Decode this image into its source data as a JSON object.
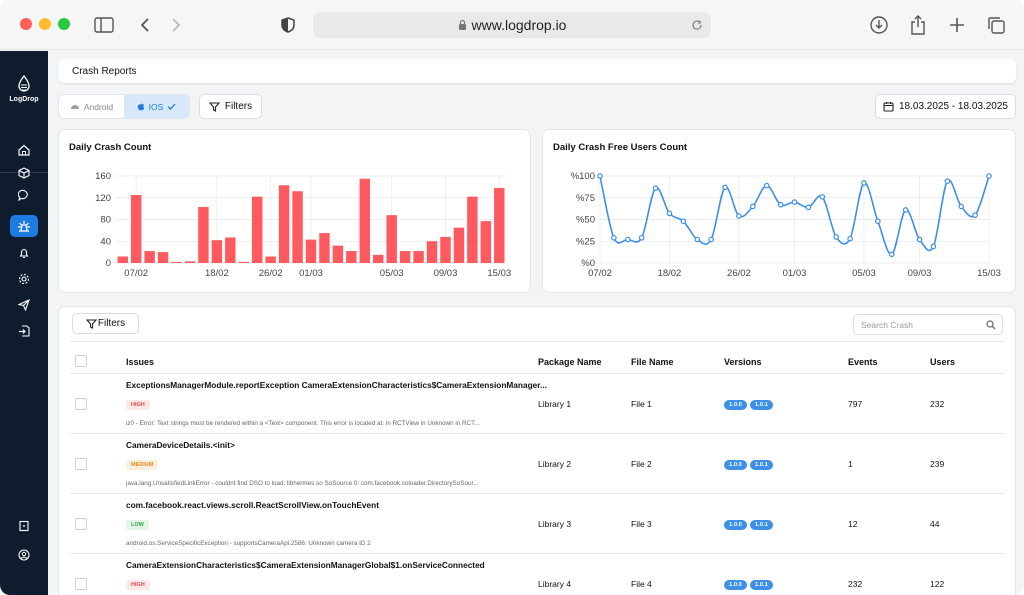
{
  "browser": {
    "url": "www.logdrop.io"
  },
  "app": {
    "logo_text": "LogDrop"
  },
  "breadcrumb": "Crash Reports",
  "platform": {
    "android": "Android",
    "ios": "IOS"
  },
  "filters_label": "Filters",
  "date_range": "18.03.2025 - 18.03.2025",
  "charts": {
    "crash_title": "Daily Crash Count",
    "free_title": "Daily Crash Free Users Count"
  },
  "chart_data": [
    {
      "type": "bar",
      "title": "Daily Crash Count",
      "ylim": [
        0,
        160
      ],
      "y_ticks": [
        "0",
        "40",
        "80",
        "120",
        "160"
      ],
      "x_ticks": [
        "07/02",
        "18/02",
        "26/02",
        "01/03",
        "05/03",
        "09/03",
        "15/03"
      ],
      "values": [
        12,
        125,
        22,
        20,
        2,
        3,
        103,
        42,
        47,
        2,
        122,
        12,
        143,
        132,
        43,
        55,
        32,
        22,
        155,
        15,
        88,
        22,
        22,
        40,
        48,
        65,
        122,
        77,
        138
      ],
      "color": "#ff5a5f"
    },
    {
      "type": "line",
      "title": "Daily Crash Free Users Count",
      "ylim": [
        0,
        100
      ],
      "y_ticks": [
        "%0",
        "%25",
        "%50",
        "%75",
        "%100"
      ],
      "x_ticks": [
        "07/02",
        "18/02",
        "26/02",
        "01/03",
        "05/03",
        "09/03",
        "15/03"
      ],
      "values": [
        100,
        29,
        27,
        29,
        86,
        57,
        48,
        27,
        27,
        87,
        54,
        65,
        89,
        67,
        70,
        64,
        76,
        30,
        28,
        92,
        48,
        10,
        61,
        27,
        19,
        94,
        65,
        55,
        100
      ],
      "color": "#3d8fe8"
    }
  ],
  "table": {
    "search_placeholder": "Search Crash",
    "headers": {
      "issues": "Issues",
      "package": "Package Name",
      "file": "File Name",
      "versions": "Versions",
      "events": "Events",
      "users": "Users"
    },
    "rows": [
      {
        "issue": "ExceptionsManagerModule.reportException CameraExtensionCharacteristics$CameraExtensionManager...",
        "severity": "HIGH",
        "sub": "iz0 - Error: Text strings must be rendered within a <Text> component. This error is located at: in RCTView in Unknown in RCT...",
        "package": "Library 1",
        "file": "File 1",
        "v1": "1.0.0",
        "v2": "1.0.1",
        "events": "797",
        "users": "232"
      },
      {
        "issue": "CameraDeviceDetails.<init>",
        "severity": "MEDIUM",
        "sub": "java.lang.UnsatisfiedLinkError - couldnt find DSO to load: libhermes.so SoSource 0: com.facebook.soloader.DirectorySoSour...",
        "package": "Library 2",
        "file": "File 2",
        "v1": "1.0.0",
        "v2": "1.0.1",
        "events": "1",
        "users": "239"
      },
      {
        "issue": "com.facebook.react.views.scroll.ReactScrollView.onTouchEvent",
        "severity": "LOW",
        "sub": "android.os.ServiceSpecificException - supportsCameraApi:2586: Unknown camera ID 2",
        "package": "Library 3",
        "file": "File 3",
        "v1": "1.0.0",
        "v2": "1.0.1",
        "events": "12",
        "users": "44"
      },
      {
        "issue": "CameraExtensionCharacteristics$CameraExtensionManagerGlobal$1.onServiceConnected",
        "severity": "HIGH",
        "sub": "",
        "package": "Library 4",
        "file": "File 4",
        "v1": "1.0.0",
        "v2": "1.0.1",
        "events": "232",
        "users": "122"
      }
    ]
  },
  "colors": {
    "accent": "#1e7be0",
    "sidebar": "#0f1c2e",
    "bar": "#ff5a5f",
    "line": "#3d8fe8"
  }
}
